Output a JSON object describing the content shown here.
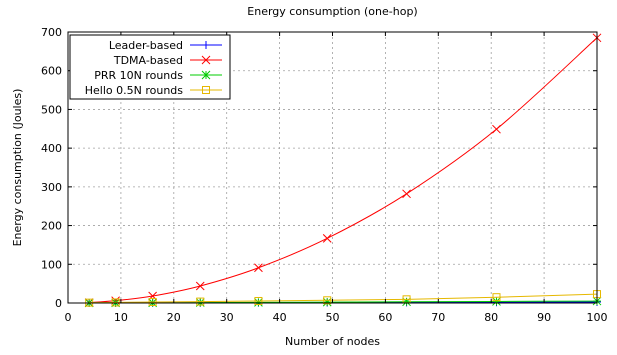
{
  "chart_data": {
    "type": "line",
    "title": "Energy consumption (one-hop)",
    "xlabel": "Number of nodes",
    "ylabel": "Energy consumption (Joules)",
    "xlim": [
      0,
      100
    ],
    "ylim": [
      0,
      700
    ],
    "xticks": [
      0,
      10,
      20,
      30,
      40,
      50,
      60,
      70,
      80,
      90,
      100
    ],
    "yticks": [
      0,
      100,
      200,
      300,
      400,
      500,
      600,
      700
    ],
    "grid": true,
    "legend_position": "top-left",
    "x": [
      4,
      9,
      16,
      25,
      36,
      49,
      64,
      81,
      100
    ],
    "series": [
      {
        "name": "Leader-based",
        "color": "#0000ff",
        "marker": "plus",
        "values": [
          0.1,
          0.2,
          0.4,
          0.6,
          0.9,
          1.2,
          1.6,
          2.0,
          2.5
        ]
      },
      {
        "name": "TDMA-based",
        "color": "#ff0000",
        "marker": "cross",
        "values": [
          1,
          6,
          18,
          44,
          91,
          167,
          282,
          449,
          685
        ]
      },
      {
        "name": "PRR 10N rounds",
        "color": "#00cc00",
        "marker": "star",
        "values": [
          0.2,
          0.4,
          0.7,
          1.1,
          1.6,
          2.3,
          3.1,
          4.0,
          5.0
        ]
      },
      {
        "name": "Hello 0.5N rounds",
        "color": "#e6b800",
        "marker": "square",
        "values": [
          0.9,
          1.5,
          2.6,
          3.7,
          5.2,
          7.0,
          9.5,
          15,
          23
        ]
      }
    ]
  }
}
